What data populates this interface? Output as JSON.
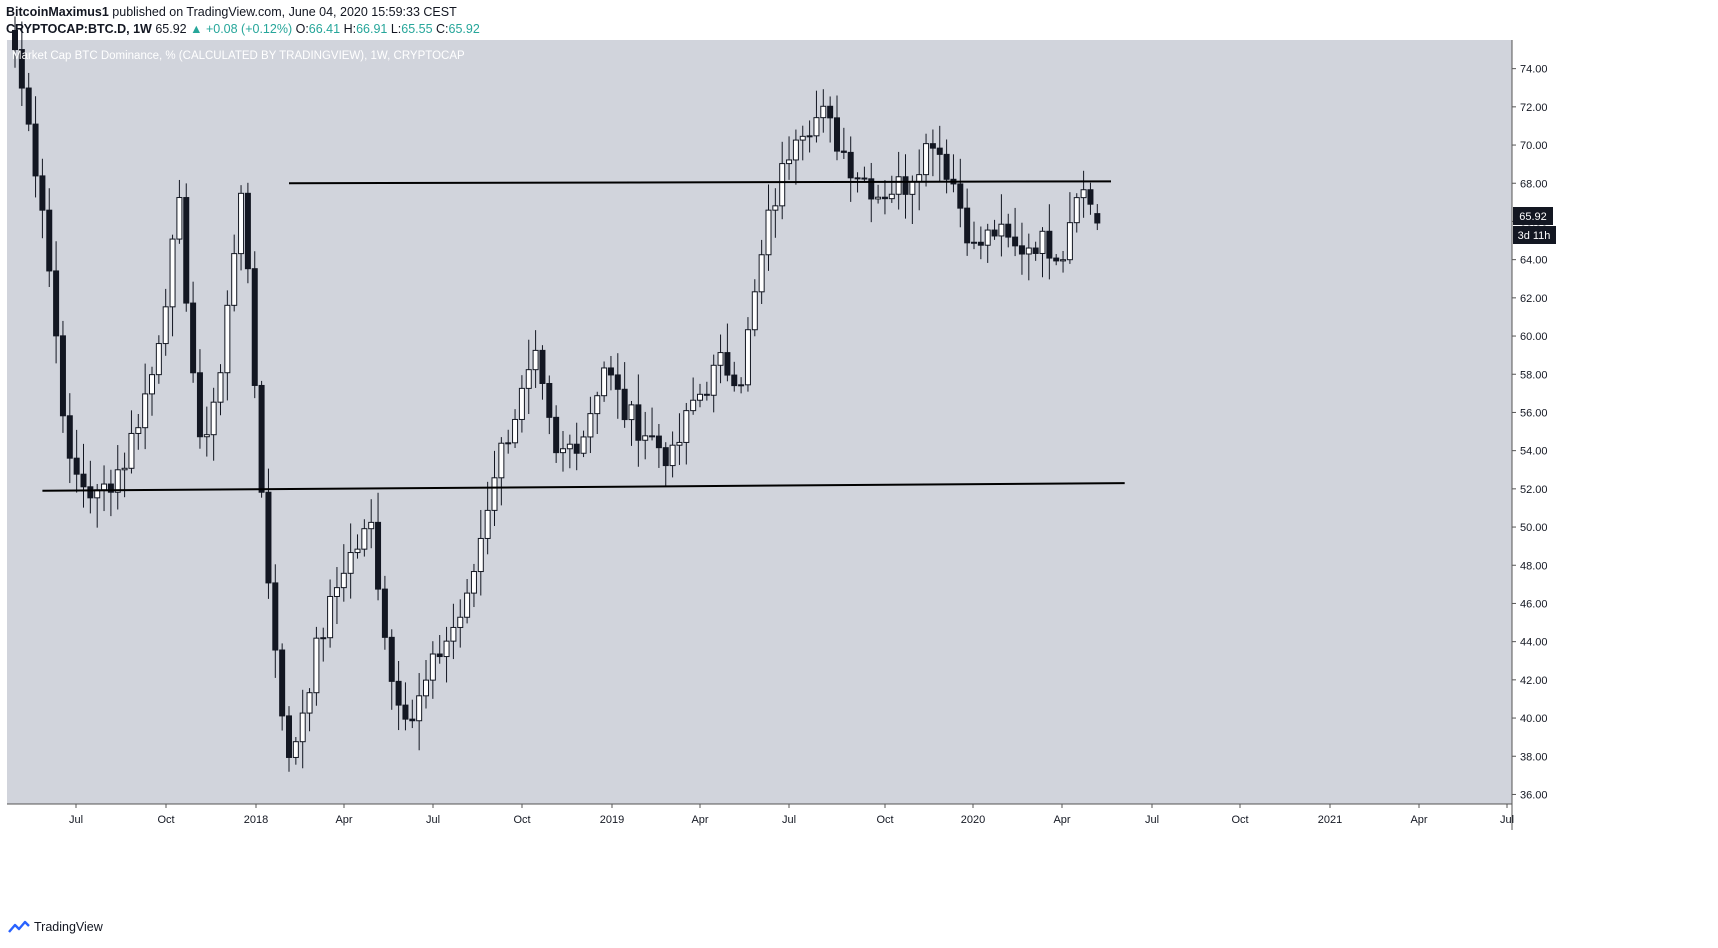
{
  "header": {
    "author": "BitcoinMaximus1",
    "published": "published on TradingView.com, June 04, 2020 15:59:33 CEST",
    "symbol": "CRYPTOCAP:BTC.D, 1W",
    "last": "65.92",
    "change": "▲ +0.08 (+0.12%)",
    "o_label": "O:",
    "o": "66.41",
    "h_label": "H:",
    "h": "66.91",
    "l_label": "L:",
    "l": "65.55",
    "c_label": "C:",
    "c": "65.92"
  },
  "footer": {
    "brand": "TradingView"
  },
  "chart_data": {
    "type": "candlestick",
    "title": "Market Cap BTC Dominance, % (CALCULATED BY TRADINGVIEW), 1W, CRYPTOCAP",
    "ylim": [
      35.5,
      75.5
    ],
    "y_ticks": [
      "74.00",
      "72.00",
      "70.00",
      "68.00",
      "66.00",
      "64.00",
      "62.00",
      "60.00",
      "58.00",
      "56.00",
      "54.00",
      "52.00",
      "50.00",
      "48.00",
      "46.00",
      "44.00",
      "42.00",
      "40.00",
      "38.00",
      "36.00"
    ],
    "x_ticks": [
      "Jul",
      "Oct",
      "2018",
      "Apr",
      "Jul",
      "Oct",
      "2019",
      "Apr",
      "Jul",
      "Oct",
      "2020",
      "Apr",
      "Jul",
      "Oct",
      "2021",
      "Apr",
      "Jul"
    ],
    "price_label": "65.92",
    "countdown_label": "3d 11h",
    "levels": [
      {
        "name": "resistance",
        "start": [
          40,
          68.0
        ],
        "end": [
          160,
          68.1
        ]
      },
      {
        "name": "support",
        "start": [
          4,
          51.9
        ],
        "end": [
          162,
          52.3
        ]
      }
    ],
    "anchors": [
      [
        0,
        75
      ],
      [
        4,
        67
      ],
      [
        8,
        53
      ],
      [
        12,
        51.5
      ],
      [
        16,
        53.5
      ],
      [
        20,
        58
      ],
      [
        24,
        66.5
      ],
      [
        27,
        54
      ],
      [
        30,
        58
      ],
      [
        33,
        68
      ],
      [
        37,
        47
      ],
      [
        40,
        37.5
      ],
      [
        44,
        43.5
      ],
      [
        48,
        48
      ],
      [
        52,
        50
      ],
      [
        55,
        42
      ],
      [
        58,
        40
      ],
      [
        62,
        43.5
      ],
      [
        66,
        46
      ],
      [
        70,
        53
      ],
      [
        73,
        56
      ],
      [
        76,
        58.5
      ],
      [
        79,
        53.5
      ],
      [
        83,
        55
      ],
      [
        86,
        58.5
      ],
      [
        89,
        56
      ],
      [
        92,
        55
      ],
      [
        96,
        53.5
      ],
      [
        99,
        56.5
      ],
      [
        103,
        58.5
      ],
      [
        106,
        58
      ],
      [
        110,
        66
      ],
      [
        114,
        71
      ],
      [
        118,
        71.5
      ],
      [
        122,
        69
      ],
      [
        126,
        67.5
      ],
      [
        130,
        68
      ],
      [
        134,
        70.5
      ],
      [
        137,
        68
      ],
      [
        140,
        64.5
      ],
      [
        143,
        65.5
      ],
      [
        146,
        64.5
      ],
      [
        149,
        65
      ],
      [
        153,
        64.5
      ],
      [
        155,
        68
      ],
      [
        157,
        67
      ],
      [
        158,
        66.41
      ]
    ],
    "last_candle": {
      "open": 66.41,
      "high": 66.91,
      "low": 65.55,
      "close": 65.92
    }
  }
}
